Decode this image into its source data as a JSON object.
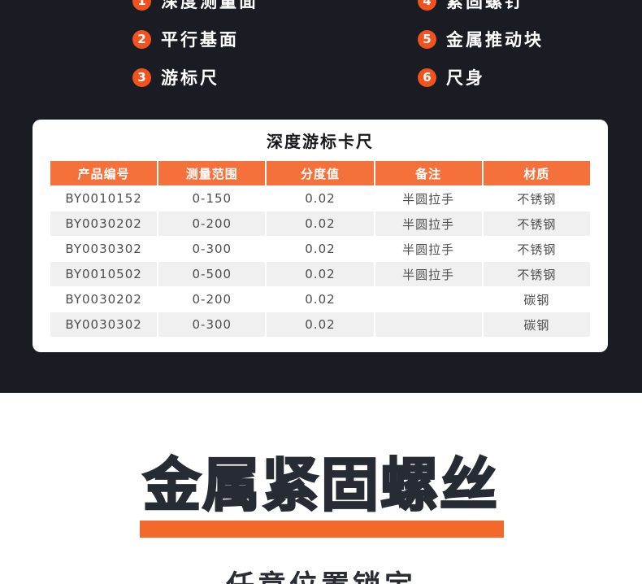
{
  "theme": {
    "colors": {
      "dark_background": "#1a1c23",
      "accent_orange": "#f2521d",
      "table_header_orange": "#f5713b",
      "highlight_bar_orange": "#f4682c",
      "row_alt_gray": "#f0f0f1",
      "card_background": "#ffffff",
      "heading_text": "#272b33",
      "cell_text": "#4d4d4d"
    }
  },
  "callouts": {
    "left": [
      {
        "num": "1",
        "label": "深度测量面"
      },
      {
        "num": "2",
        "label": "平行基面"
      },
      {
        "num": "3",
        "label": "游标尺"
      }
    ],
    "right": [
      {
        "num": "4",
        "label": "紧固螺钉"
      },
      {
        "num": "5",
        "label": "金属推动块"
      },
      {
        "num": "6",
        "label": "尺身"
      }
    ]
  },
  "spec_card": {
    "title": "深度游标卡尺",
    "table": {
      "headers": [
        "产品编号",
        "测量范围",
        "分度值",
        "备注",
        "材质"
      ],
      "rows": [
        [
          "BY0010152",
          "0-150",
          "0.02",
          "半圆拉手",
          "不锈钢"
        ],
        [
          "BY0030202",
          "0-200",
          "0.02",
          "半圆拉手",
          "不锈钢"
        ],
        [
          "BY0030302",
          "0-300",
          "0.02",
          "半圆拉手",
          "不锈钢"
        ],
        [
          "BY0010502",
          "0-500",
          "0.02",
          "半圆拉手",
          "不锈钢"
        ],
        [
          "BY0030202",
          "0-200",
          "0.02",
          "",
          "碳钢"
        ],
        [
          "BY0030302",
          "0-300",
          "0.02",
          "",
          "碳钢"
        ]
      ]
    }
  },
  "feature_section": {
    "heading": "金属紧固螺丝",
    "subheading": "任意位置锁定"
  }
}
